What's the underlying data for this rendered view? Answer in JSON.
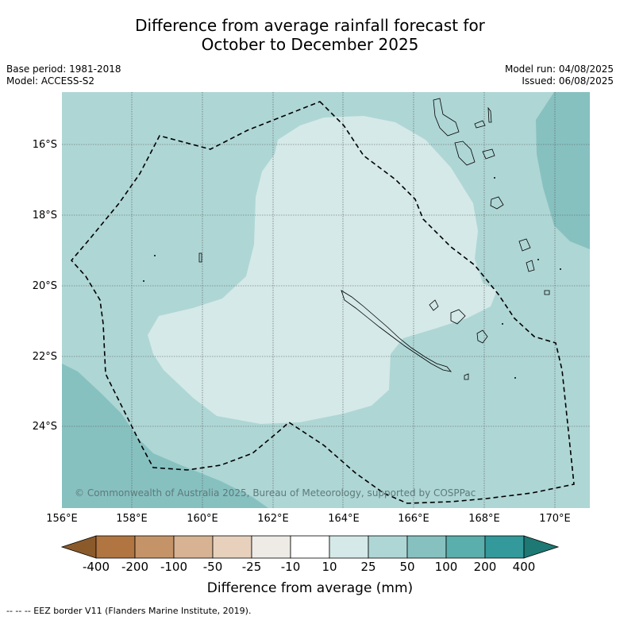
{
  "title": {
    "line1": "Difference from average rainfall forecast for",
    "line2": "October to December 2025"
  },
  "meta": {
    "base_period": "Base period: 1981-2018",
    "model": "Model: ACCESS-S2",
    "model_run": "Model run: 04/08/2025",
    "issued": "Issued: 06/08/2025"
  },
  "axes": {
    "lat_labels": [
      "16°S",
      "18°S",
      "20°S",
      "22°S",
      "24°S"
    ],
    "lon_labels": [
      "156°E",
      "158°E",
      "160°E",
      "162°E",
      "164°E",
      "166°E",
      "168°E",
      "170°E"
    ]
  },
  "colors": {
    "c_10_25": "#d4e9e8",
    "c_25_50": "#aed6d5",
    "c_50_100": "#86c1c0",
    "coastline": "#000000"
  },
  "copyright": "© Commonwealth of Australia 2025, Bureau of Meteorology, supported by COSPPac",
  "colorbar": {
    "labels": [
      "-400",
      "-200",
      "-100",
      "-50",
      "-25",
      "-10",
      "10",
      "25",
      "50",
      "100",
      "200",
      "400"
    ],
    "colors": [
      "#8b5a2b",
      "#b07540",
      "#c49468",
      "#d7b393",
      "#e7d1bd",
      "#eeebe6",
      "#ffffff",
      "#d4e9e8",
      "#aed6d5",
      "#86c1c0",
      "#5aaeab",
      "#33999a",
      "#1e7873"
    ],
    "title": "Difference from average (mm)"
  },
  "footnote": "--  --  -- EEZ border V11 (Flanders Marine Institute, 2019)."
}
